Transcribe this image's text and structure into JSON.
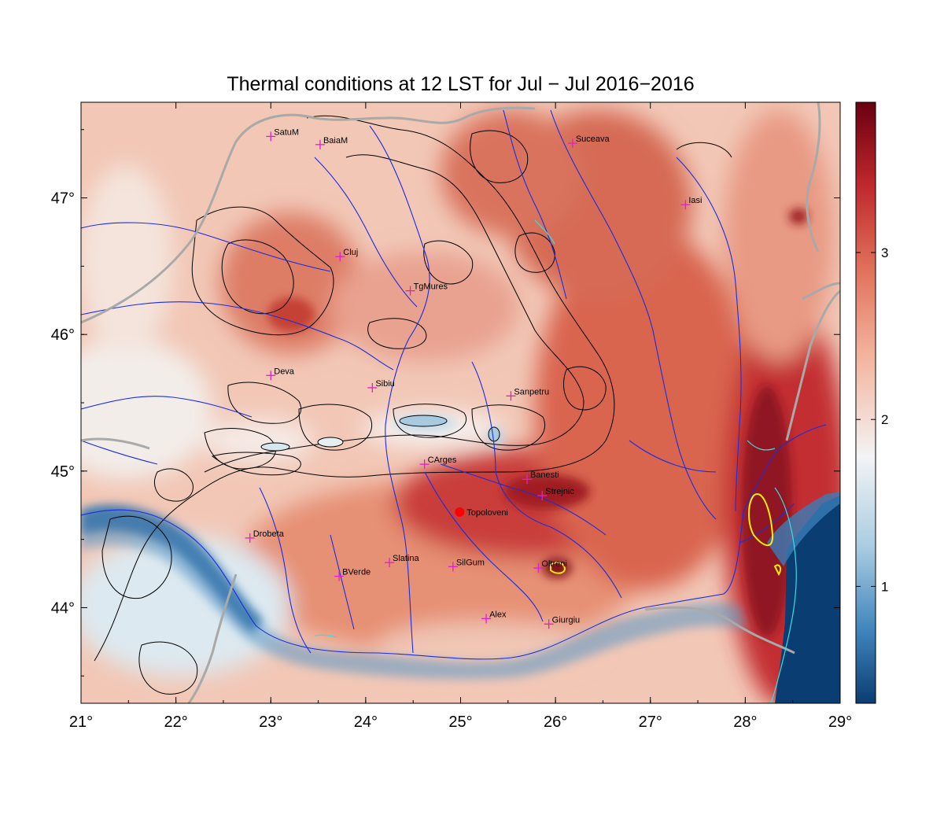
{
  "title": "Thermal conditions at 12 LST for Jul − Jul  2016−2016",
  "colors": {
    "cold_deep": "#0a3d72",
    "cold": "#3f84bb",
    "neutral": "#f3f3f5",
    "warm": "#e88d72",
    "hot": "#c0292d",
    "hot_deep": "#690010",
    "river": "#1a2de0",
    "border": "#a9a9a9",
    "contour": "#000000",
    "city_marker": "#e020c8",
    "highlight_point": "#ff0000",
    "lake": "#36e0e0",
    "yellow_contour": "#ffee00"
  },
  "map": {
    "lon_range": [
      21,
      29
    ],
    "lat_range": [
      43.3,
      47.7
    ],
    "lon_ticks": [
      "21°",
      "22°",
      "23°",
      "24°",
      "25°",
      "26°",
      "27°",
      "28°",
      "29°"
    ],
    "lat_ticks": [
      "44°",
      "45°",
      "46°",
      "47°"
    ],
    "lon_tick_values": [
      21,
      22,
      23,
      24,
      25,
      26,
      27,
      28,
      29
    ],
    "lat_tick_values": [
      44,
      45,
      46,
      47
    ]
  },
  "colorbar": {
    "range": [
      0.3,
      3.9
    ],
    "ticks": [
      "1",
      "2",
      "3"
    ],
    "tick_values": [
      1,
      2,
      3
    ]
  },
  "cities": [
    {
      "name": "SatuM",
      "lon": 23.0,
      "lat": 47.45
    },
    {
      "name": "BaiaM",
      "lon": 23.52,
      "lat": 47.39
    },
    {
      "name": "Suceava",
      "lon": 26.18,
      "lat": 47.4
    },
    {
      "name": "Iasi",
      "lon": 27.37,
      "lat": 46.95
    },
    {
      "name": "Cluj",
      "lon": 23.73,
      "lat": 46.57
    },
    {
      "name": "TgMures",
      "lon": 24.47,
      "lat": 46.32
    },
    {
      "name": "Deva",
      "lon": 23.0,
      "lat": 45.7
    },
    {
      "name": "Sibiu",
      "lon": 24.07,
      "lat": 45.61
    },
    {
      "name": "Sanpetru",
      "lon": 25.53,
      "lat": 45.55
    },
    {
      "name": "CArges",
      "lon": 24.62,
      "lat": 45.05
    },
    {
      "name": "Banesti",
      "lon": 25.7,
      "lat": 44.94
    },
    {
      "name": "Strejnic",
      "lon": 25.86,
      "lat": 44.82
    },
    {
      "name": "Drobeta",
      "lon": 22.78,
      "lat": 44.51
    },
    {
      "name": "Slatina",
      "lon": 24.25,
      "lat": 44.33
    },
    {
      "name": "SilGum",
      "lon": 24.92,
      "lat": 44.3
    },
    {
      "name": "Oltreni",
      "lon": 25.82,
      "lat": 44.29
    },
    {
      "name": "BVerde",
      "lon": 23.72,
      "lat": 44.23
    },
    {
      "name": "Alex",
      "lon": 25.27,
      "lat": 43.92
    },
    {
      "name": "Giurgiu",
      "lon": 25.93,
      "lat": 43.88
    }
  ],
  "highlight_city": {
    "name": "Topoloveni",
    "lon": 24.99,
    "lat": 44.7
  }
}
